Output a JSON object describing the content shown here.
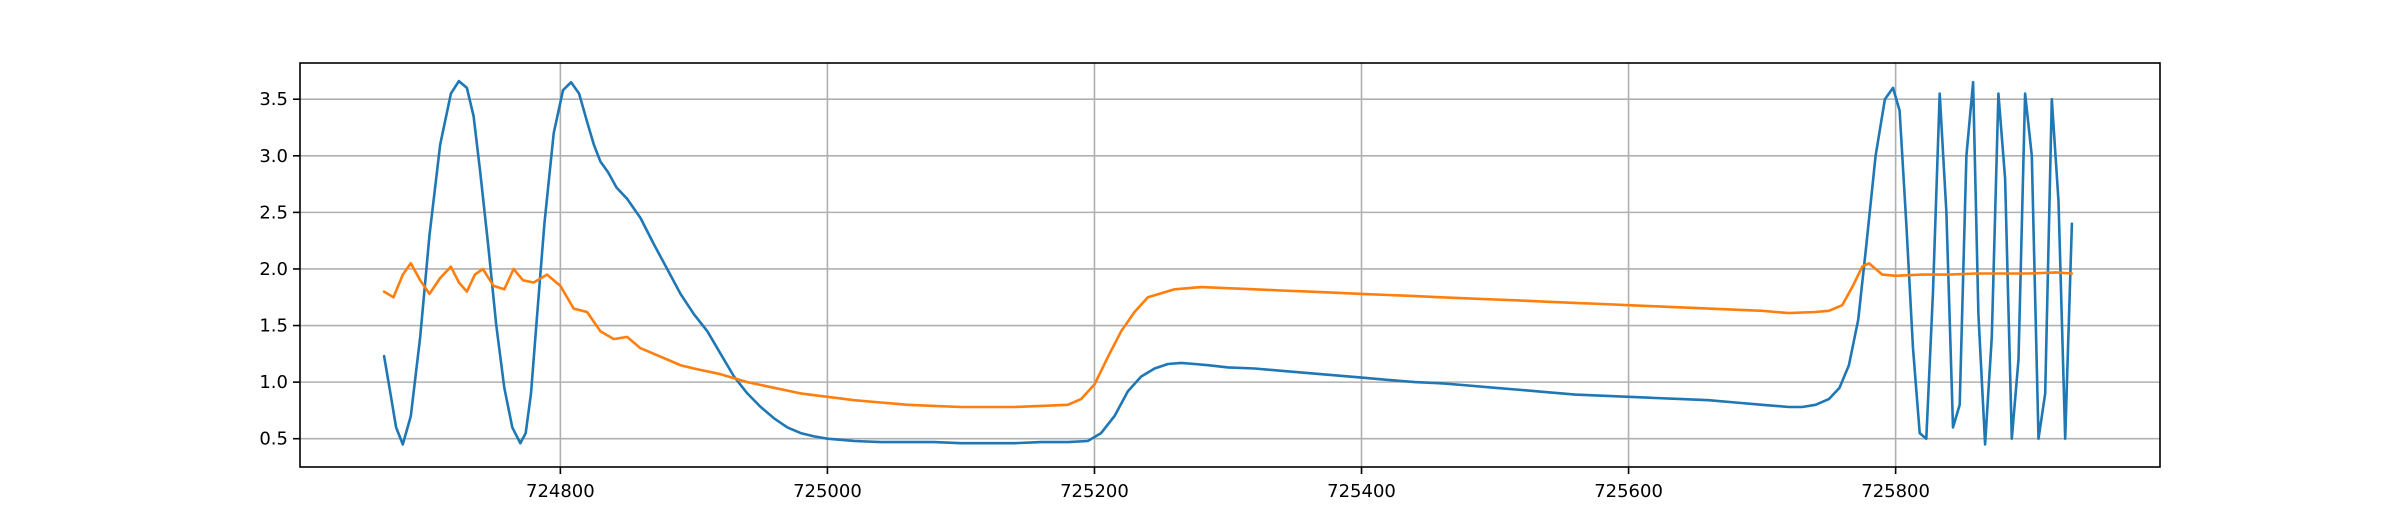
{
  "chart_data": {
    "type": "line",
    "title": "",
    "xlabel": "",
    "ylabel": "",
    "xlim": [
      724605,
      725998
    ],
    "ylim": [
      0.25,
      3.82
    ],
    "grid": true,
    "x_ticks": [
      724800,
      725000,
      725200,
      725400,
      725600,
      725800
    ],
    "x_tick_labels": [
      "724800",
      "725000",
      "725200",
      "725400",
      "725600",
      "725800"
    ],
    "y_ticks": [
      0.5,
      1.0,
      1.5,
      2.0,
      2.5,
      3.0,
      3.5
    ],
    "y_tick_labels": [
      "0.5",
      "1.0",
      "1.5",
      "2.0",
      "2.5",
      "3.0",
      "3.5"
    ],
    "series": [
      {
        "color": "#1f77b4",
        "x": [
          724668,
          724672,
          724677,
          724682,
          724688,
          724695,
          724702,
          724710,
          724718,
          724724,
          724730,
          724735,
          724740,
          724746,
          724752,
          724758,
          724764,
          724770,
          724774,
          724778,
          724782,
          724788,
          724795,
          724802,
          724808,
          724814,
          724820,
          724825,
          724830,
          724836,
          724842,
          724850,
          724860,
          724870,
          724880,
          724890,
          724900,
          724910,
          724920,
          724930,
          724940,
          724950,
          724960,
          724970,
          724980,
          724990,
          725000,
          725010,
          725020,
          725040,
          725060,
          725080,
          725100,
          725120,
          725140,
          725160,
          725180,
          725195,
          725205,
          725215,
          725225,
          725235,
          725245,
          725255,
          725265,
          725275,
          725285,
          725300,
          725320,
          725340,
          725360,
          725380,
          725400,
          725420,
          725440,
          725460,
          725480,
          725500,
          725520,
          725540,
          725560,
          725580,
          725600,
          725620,
          725640,
          725660,
          725680,
          725700,
          725720,
          725730,
          725740,
          725750,
          725758,
          725765,
          725772,
          725778,
          725785,
          725792,
          725798,
          725803,
          725808,
          725813,
          725818,
          725823,
          725828,
          725833,
          725838,
          725843,
          725848,
          725853,
          725858,
          725862,
          725867,
          725872,
          725877,
          725882,
          725887,
          725892,
          725897,
          725902,
          725907,
          725912,
          725917,
          725922,
          725927,
          725932
        ],
        "y": [
          1.23,
          0.95,
          0.6,
          0.45,
          0.7,
          1.4,
          2.3,
          3.1,
          3.55,
          3.66,
          3.6,
          3.35,
          2.85,
          2.2,
          1.5,
          0.95,
          0.6,
          0.46,
          0.55,
          0.9,
          1.5,
          2.4,
          3.2,
          3.58,
          3.65,
          3.55,
          3.3,
          3.1,
          2.95,
          2.85,
          2.72,
          2.62,
          2.45,
          2.22,
          2.0,
          1.78,
          1.6,
          1.45,
          1.25,
          1.05,
          0.9,
          0.78,
          0.68,
          0.6,
          0.55,
          0.52,
          0.5,
          0.49,
          0.48,
          0.47,
          0.47,
          0.47,
          0.46,
          0.46,
          0.46,
          0.47,
          0.47,
          0.48,
          0.55,
          0.7,
          0.92,
          1.05,
          1.12,
          1.16,
          1.17,
          1.16,
          1.15,
          1.13,
          1.12,
          1.1,
          1.08,
          1.06,
          1.04,
          1.02,
          1.0,
          0.99,
          0.97,
          0.95,
          0.93,
          0.91,
          0.89,
          0.88,
          0.87,
          0.86,
          0.85,
          0.84,
          0.82,
          0.8,
          0.78,
          0.78,
          0.8,
          0.85,
          0.95,
          1.15,
          1.55,
          2.2,
          3.0,
          3.5,
          3.6,
          3.4,
          2.4,
          1.3,
          0.55,
          0.5,
          1.8,
          3.55,
          2.5,
          0.6,
          0.8,
          3.0,
          3.65,
          1.6,
          0.45,
          1.4,
          3.55,
          2.8,
          0.5,
          1.2,
          3.55,
          3.0,
          0.5,
          0.9,
          3.5,
          2.6,
          0.5,
          2.4
        ]
      },
      {
        "color": "#ff7f0e",
        "x": [
          724668,
          724675,
          724682,
          724688,
          724695,
          724702,
          724710,
          724718,
          724724,
          724730,
          724736,
          724742,
          724750,
          724758,
          724765,
          724772,
          724780,
          724790,
          724800,
          724810,
          724820,
          724830,
          724840,
          724850,
          724860,
          724870,
          724880,
          724890,
          724900,
          724920,
          724940,
          724960,
          724980,
          725000,
          725020,
          725040,
          725060,
          725080,
          725100,
          725120,
          725140,
          725160,
          725180,
          725190,
          725200,
          725210,
          725220,
          725230,
          725240,
          725260,
          725280,
          725300,
          725320,
          725340,
          725360,
          725380,
          725400,
          725420,
          725440,
          725460,
          725480,
          725500,
          725520,
          725540,
          725560,
          725580,
          725600,
          725620,
          725640,
          725660,
          725680,
          725700,
          725720,
          725740,
          725750,
          725760,
          725768,
          725775,
          725780,
          725790,
          725800,
          725820,
          725840,
          725860,
          725880,
          725900,
          725920,
          725932
        ],
        "y": [
          1.8,
          1.75,
          1.95,
          2.05,
          1.9,
          1.78,
          1.92,
          2.02,
          1.88,
          1.8,
          1.95,
          2.0,
          1.85,
          1.82,
          2.0,
          1.9,
          1.88,
          1.95,
          1.85,
          1.65,
          1.62,
          1.45,
          1.38,
          1.4,
          1.3,
          1.25,
          1.2,
          1.15,
          1.12,
          1.07,
          1.0,
          0.95,
          0.9,
          0.87,
          0.84,
          0.82,
          0.8,
          0.79,
          0.78,
          0.78,
          0.78,
          0.79,
          0.8,
          0.85,
          0.98,
          1.22,
          1.45,
          1.62,
          1.75,
          1.82,
          1.84,
          1.83,
          1.82,
          1.81,
          1.8,
          1.79,
          1.78,
          1.77,
          1.76,
          1.75,
          1.74,
          1.73,
          1.72,
          1.71,
          1.7,
          1.69,
          1.68,
          1.67,
          1.66,
          1.65,
          1.64,
          1.63,
          1.61,
          1.62,
          1.63,
          1.68,
          1.85,
          2.02,
          2.05,
          1.95,
          1.94,
          1.95,
          1.95,
          1.96,
          1.96,
          1.96,
          1.97,
          1.96
        ]
      }
    ]
  }
}
